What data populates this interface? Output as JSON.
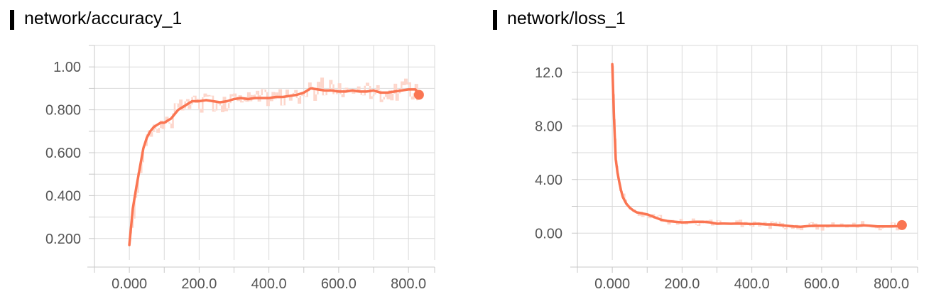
{
  "chart_data": [
    {
      "type": "line",
      "title": "network/accuracy_1",
      "color": "#fa7552",
      "raw_color": "#fdd6cb",
      "xlim": [
        -100,
        875
      ],
      "ylim": [
        0.1,
        1.1
      ],
      "x_ticks": [
        0,
        200,
        400,
        600,
        800
      ],
      "x_tick_labels": [
        "0.000",
        "200.0",
        "400.0",
        "600.0",
        "800.0"
      ],
      "x_minor_ticks": [
        -100,
        100,
        300,
        500,
        700
      ],
      "y_ticks": [
        0.2,
        0.4,
        0.6,
        0.8,
        1.0
      ],
      "y_tick_labels": [
        "0.200",
        "0.400",
        "0.600",
        "0.800",
        "1.00"
      ],
      "y_minor_ticks": [
        0.3,
        0.5,
        0.7,
        0.9,
        1.1
      ],
      "grid": true,
      "series": [
        {
          "x": [
            0,
            10,
            20,
            30,
            40,
            50,
            60,
            70,
            80,
            90,
            100,
            110,
            120,
            130,
            140,
            150,
            160,
            170,
            180,
            190,
            200,
            220,
            240,
            260,
            280,
            300,
            320,
            340,
            360,
            380,
            400,
            420,
            440,
            460,
            480,
            500,
            520,
            540,
            560,
            580,
            600,
            620,
            640,
            660,
            680,
            700,
            720,
            740,
            760,
            780,
            800,
            820,
            830
          ],
          "y": [
            0.17,
            0.34,
            0.44,
            0.53,
            0.62,
            0.67,
            0.7,
            0.72,
            0.73,
            0.74,
            0.74,
            0.75,
            0.76,
            0.78,
            0.8,
            0.81,
            0.82,
            0.83,
            0.84,
            0.84,
            0.84,
            0.845,
            0.84,
            0.835,
            0.84,
            0.85,
            0.855,
            0.85,
            0.855,
            0.855,
            0.855,
            0.86,
            0.86,
            0.865,
            0.87,
            0.88,
            0.9,
            0.895,
            0.89,
            0.89,
            0.885,
            0.885,
            0.89,
            0.885,
            0.885,
            0.89,
            0.88,
            0.88,
            0.885,
            0.89,
            0.895,
            0.895,
            0.87
          ]
        }
      ]
    },
    {
      "type": "line",
      "title": "network/loss_1",
      "color": "#fa7552",
      "raw_color": "#fdd6cb",
      "xlim": [
        -100,
        875
      ],
      "ylim": [
        -2,
        14
      ],
      "x_ticks": [
        0,
        200,
        400,
        600,
        800
      ],
      "x_tick_labels": [
        "0.000",
        "200.0",
        "400.0",
        "600.0",
        "800.0"
      ],
      "x_minor_ticks": [
        -100,
        100,
        300,
        500,
        700
      ],
      "y_ticks": [
        0,
        4,
        8,
        12
      ],
      "y_tick_labels": [
        "0.00",
        "4.00",
        "8.00",
        "12.0"
      ],
      "y_minor_ticks": [
        2,
        6,
        10,
        14
      ],
      "grid": true,
      "series": [
        {
          "x": [
            0,
            5,
            10,
            15,
            20,
            25,
            30,
            40,
            50,
            60,
            70,
            80,
            90,
            100,
            120,
            140,
            160,
            180,
            200,
            220,
            240,
            260,
            280,
            300,
            320,
            340,
            360,
            380,
            400,
            420,
            440,
            460,
            480,
            500,
            520,
            540,
            560,
            580,
            600,
            620,
            640,
            660,
            680,
            700,
            720,
            740,
            760,
            780,
            800,
            820,
            830
          ],
          "y": [
            12.6,
            8.5,
            5.5,
            4.5,
            3.8,
            3.2,
            2.7,
            2.2,
            1.9,
            1.7,
            1.55,
            1.5,
            1.45,
            1.4,
            1.2,
            1.0,
            0.9,
            0.85,
            0.8,
            0.82,
            0.85,
            0.85,
            0.8,
            0.7,
            0.72,
            0.7,
            0.72,
            0.7,
            0.68,
            0.7,
            0.65,
            0.65,
            0.6,
            0.55,
            0.5,
            0.48,
            0.52,
            0.55,
            0.55,
            0.55,
            0.55,
            0.55,
            0.55,
            0.55,
            0.58,
            0.55,
            0.5,
            0.5,
            0.5,
            0.52,
            0.6
          ]
        }
      ]
    }
  ]
}
